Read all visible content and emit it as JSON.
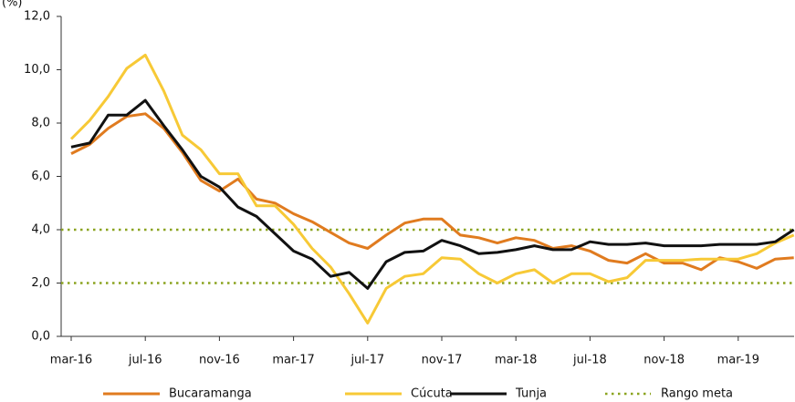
{
  "chart_data": {
    "type": "line",
    "y_label": "(%)",
    "categories": [
      "mar-16",
      null,
      null,
      null,
      "jul-16",
      null,
      null,
      null,
      "nov-16",
      null,
      null,
      null,
      "mar-17",
      null,
      null,
      null,
      "jul-17",
      null,
      null,
      null,
      "nov-17",
      null,
      null,
      null,
      "mar-18",
      null,
      null,
      null,
      "jul-18",
      null,
      null,
      null,
      "nov-18",
      null,
      null,
      null,
      "mar-19",
      null,
      null,
      null
    ],
    "series": [
      {
        "name": "Bucaramanga",
        "color": "#e07b1f",
        "values": [
          6.85,
          7.2,
          7.8,
          8.25,
          8.35,
          7.8,
          6.9,
          5.85,
          5.45,
          5.9,
          5.15,
          5.0,
          4.6,
          4.3,
          3.9,
          3.5,
          3.3,
          3.8,
          4.25,
          4.4,
          4.4,
          3.8,
          3.7,
          3.5,
          3.7,
          3.6,
          3.3,
          3.4,
          3.2,
          2.85,
          2.75,
          3.1,
          2.75,
          2.75,
          2.5,
          2.95,
          2.8,
          2.55,
          2.9,
          2.95
        ]
      },
      {
        "name": "Cúcuta",
        "color": "#f7c936",
        "values": [
          7.4,
          8.1,
          9.0,
          10.05,
          10.55,
          9.2,
          7.55,
          7.0,
          6.1,
          6.1,
          4.9,
          4.9,
          4.2,
          3.3,
          2.6,
          1.6,
          0.5,
          1.8,
          2.25,
          2.35,
          2.95,
          2.9,
          2.35,
          2.0,
          2.35,
          2.5,
          2.0,
          2.35,
          2.35,
          2.05,
          2.2,
          2.85,
          2.85,
          2.85,
          2.9,
          2.9,
          2.9,
          3.1,
          3.5,
          3.8
        ]
      },
      {
        "name": "Tunja",
        "color": "#111111",
        "values": [
          7.1,
          7.25,
          8.3,
          8.3,
          8.85,
          7.9,
          7.0,
          6.0,
          5.6,
          4.85,
          4.5,
          3.85,
          3.2,
          2.9,
          2.25,
          2.4,
          1.8,
          2.8,
          3.15,
          3.2,
          3.6,
          3.4,
          3.1,
          3.15,
          3.25,
          3.4,
          3.25,
          3.25,
          3.55,
          3.45,
          3.45,
          3.5,
          3.4,
          3.4,
          3.4,
          3.45,
          3.45,
          3.45,
          3.55,
          4.0
        ]
      }
    ],
    "target_range": {
      "name": "Rango meta",
      "color": "#8aa31e",
      "values": [
        2,
        4
      ]
    },
    "ylim": [
      0,
      12
    ],
    "yticks": [
      {
        "value": 0,
        "label": "0,0"
      },
      {
        "value": 2,
        "label": "2,0"
      },
      {
        "value": 4,
        "label": "4,0"
      },
      {
        "value": 6,
        "label": "6,0"
      },
      {
        "value": 8,
        "label": "8,0"
      },
      {
        "value": 10,
        "label": "10,0"
      },
      {
        "value": 12,
        "label": "12,0"
      }
    ],
    "legend": "bottom"
  }
}
